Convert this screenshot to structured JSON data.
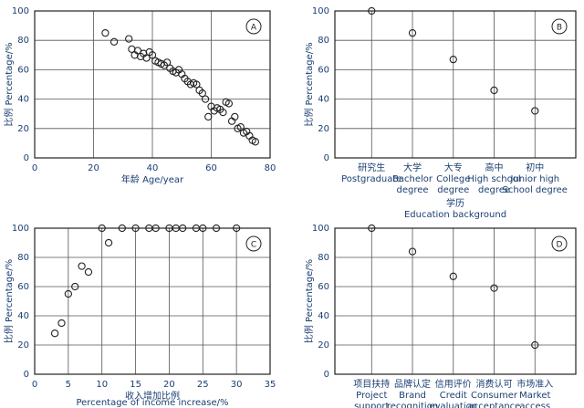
{
  "chart_data": [
    {
      "type": "scatter",
      "panel": "A",
      "xlabel": "年龄 Age/year",
      "ylabel": "比例 Percentage/%",
      "color": "#222222",
      "x": [
        24,
        27,
        32,
        33,
        34,
        35,
        36,
        37,
        38,
        39,
        40,
        41,
        42,
        43,
        44,
        45,
        46,
        47,
        48,
        49,
        50,
        51,
        52,
        53,
        54,
        55,
        56,
        57,
        58,
        59,
        60,
        61,
        62,
        63,
        64,
        65,
        66,
        67,
        68,
        69,
        70,
        71,
        72,
        73,
        74,
        75
      ],
      "values": [
        85,
        79,
        81,
        74,
        70,
        73,
        69,
        71,
        68,
        72,
        70,
        66,
        65,
        64,
        63,
        65,
        61,
        59,
        58,
        60,
        57,
        54,
        52,
        50,
        51,
        50,
        46,
        44,
        40,
        28,
        35,
        32,
        34,
        33,
        31,
        38,
        37,
        25,
        28,
        20,
        21,
        17,
        18,
        15,
        12,
        11
      ],
      "xlim": [
        0,
        80
      ],
      "xticks": [
        0,
        20,
        40,
        60,
        80
      ],
      "ylim": [
        0,
        100
      ],
      "yticks": [
        0,
        20,
        40,
        60,
        80,
        100
      ],
      "grid": true
    },
    {
      "type": "dot",
      "panel": "B",
      "xlabel": [
        "学历",
        "Education background"
      ],
      "ylabel": "比例 Percentage/%",
      "color": "#222222",
      "categories": [
        [
          "研究生",
          "Postgraduate"
        ],
        [
          "大学",
          "Bachelor",
          "degree"
        ],
        [
          "大专",
          "College",
          "degree"
        ],
        [
          "高中",
          "High school",
          "degree"
        ],
        [
          "初中",
          "Junior high",
          "School degree"
        ]
      ],
      "values": [
        100,
        85,
        67,
        46,
        32
      ],
      "ylim": [
        0,
        100
      ],
      "yticks": [
        0,
        20,
        40,
        60,
        80,
        100
      ],
      "grid": true
    },
    {
      "type": "scatter",
      "panel": "C",
      "xlabel": [
        "收入增加比例",
        "Percentage of income increase/%"
      ],
      "ylabel": "比例 Percentage/%",
      "color": "#222222",
      "x": [
        3,
        4,
        5,
        6,
        7,
        8,
        10,
        11,
        13,
        15,
        17,
        18,
        20,
        21,
        22,
        24,
        25,
        27,
        30
      ],
      "values": [
        28,
        35,
        55,
        60,
        74,
        70,
        100,
        90,
        100,
        100,
        100,
        100,
        100,
        100,
        100,
        100,
        100,
        100,
        100
      ],
      "xlim": [
        0,
        35
      ],
      "xticks": [
        0,
        5,
        10,
        15,
        20,
        25,
        30,
        35
      ],
      "ylim": [
        0,
        100
      ],
      "yticks": [
        0,
        20,
        40,
        60,
        80,
        100
      ],
      "grid": true
    },
    {
      "type": "dot",
      "panel": "D",
      "ylabel": "比例 Percentage/%",
      "color": "#222222",
      "categories": [
        [
          "项目扶持",
          "Project",
          "support"
        ],
        [
          "品牌认定",
          "Brand",
          "recognition"
        ],
        [
          "信用评价",
          "Credit",
          "evaluation"
        ],
        [
          "消费认可",
          "Consumer",
          "acceptance"
        ],
        [
          "市场准入",
          "Market",
          "access"
        ]
      ],
      "values": [
        100,
        84,
        67,
        59,
        20
      ],
      "ylim": [
        0,
        100
      ],
      "yticks": [
        0,
        20,
        40,
        60,
        80,
        100
      ],
      "grid": true
    }
  ]
}
